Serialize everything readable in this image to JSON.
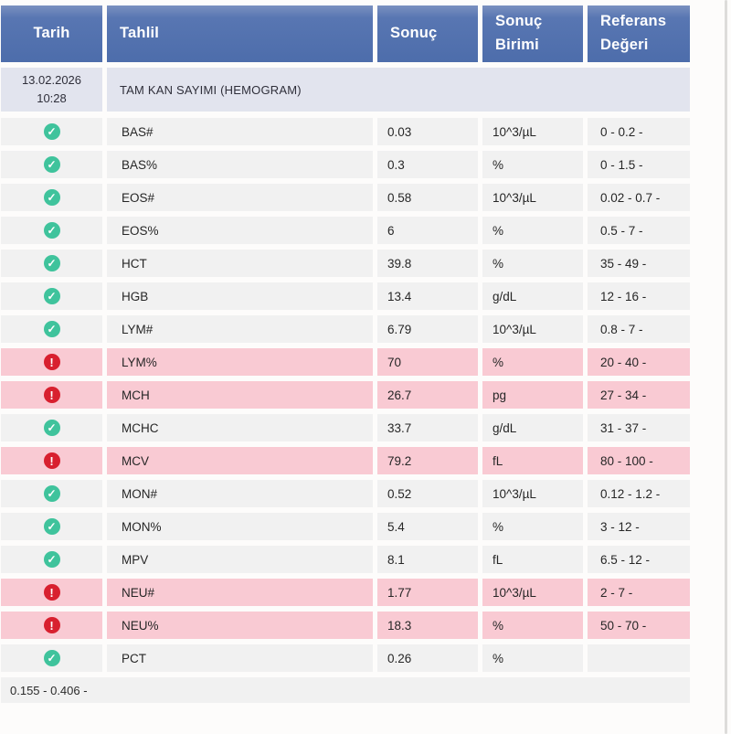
{
  "table": {
    "columns": [
      {
        "label": "Tarih"
      },
      {
        "label": "Tahlil"
      },
      {
        "label": "Sonuç"
      },
      {
        "label": "Sonuç Birimi"
      },
      {
        "label": "Referans Değeri"
      }
    ],
    "group": {
      "date": "13.02.2026",
      "time": "10:28",
      "panel": "TAM KAN SAYIMI (HEMOGRAM)"
    },
    "rows": [
      {
        "status": "ok",
        "test": "BAS#",
        "result": "0.03",
        "unit": "10^3/µL",
        "reference": "0 - 0.2 -"
      },
      {
        "status": "ok",
        "test": "BAS%",
        "result": "0.3",
        "unit": "%",
        "reference": "0 - 1.5 -"
      },
      {
        "status": "ok",
        "test": "EOS#",
        "result": "0.58",
        "unit": "10^3/µL",
        "reference": "0.02 - 0.7 -"
      },
      {
        "status": "ok",
        "test": "EOS%",
        "result": "6",
        "unit": "%",
        "reference": "0.5 - 7 -"
      },
      {
        "status": "ok",
        "test": "HCT",
        "result": "39.8",
        "unit": "%",
        "reference": "35 - 49 -"
      },
      {
        "status": "ok",
        "test": "HGB",
        "result": "13.4",
        "unit": "g/dL",
        "reference": "12 - 16 -"
      },
      {
        "status": "ok",
        "test": "LYM#",
        "result": "6.79",
        "unit": "10^3/µL",
        "reference": "0.8 - 7 -"
      },
      {
        "status": "alert",
        "test": "LYM%",
        "result": "70",
        "unit": "%",
        "reference": "20 - 40 -"
      },
      {
        "status": "alert",
        "test": "MCH",
        "result": "26.7",
        "unit": "pg",
        "reference": "27 - 34 -"
      },
      {
        "status": "ok",
        "test": "MCHC",
        "result": "33.7",
        "unit": "g/dL",
        "reference": "31 - 37 -"
      },
      {
        "status": "alert",
        "test": "MCV",
        "result": "79.2",
        "unit": "fL",
        "reference": "80 - 100 -"
      },
      {
        "status": "ok",
        "test": "MON#",
        "result": "0.52",
        "unit": "10^3/µL",
        "reference": "0.12 - 1.2 -"
      },
      {
        "status": "ok",
        "test": "MON%",
        "result": "5.4",
        "unit": "%",
        "reference": "3 - 12 -"
      },
      {
        "status": "ok",
        "test": "MPV",
        "result": "8.1",
        "unit": "fL",
        "reference": "6.5 - 12 -"
      },
      {
        "status": "alert",
        "test": "NEU#",
        "result": "1.77",
        "unit": "10^3/µL",
        "reference": "2 - 7 -"
      },
      {
        "status": "alert",
        "test": "NEU%",
        "result": "18.3",
        "unit": "%",
        "reference": "50 - 70 -"
      },
      {
        "status": "ok",
        "test": "PCT",
        "result": "0.26",
        "unit": "%",
        "reference": ""
      }
    ],
    "footer": "0.155 - 0.406 -"
  },
  "icons": {
    "ok": {
      "name": "check-icon",
      "glyph": "✓"
    },
    "alert": {
      "name": "alert-icon",
      "glyph": "!"
    }
  },
  "colors": {
    "header_bg": "#4d6dab",
    "group_row_bg": "#e2e4ee",
    "row_bg": "#f1f1f1",
    "alert_row_bg": "#f9cad3",
    "ok_icon": "#3fc39c",
    "alert_icon": "#d8202f"
  }
}
